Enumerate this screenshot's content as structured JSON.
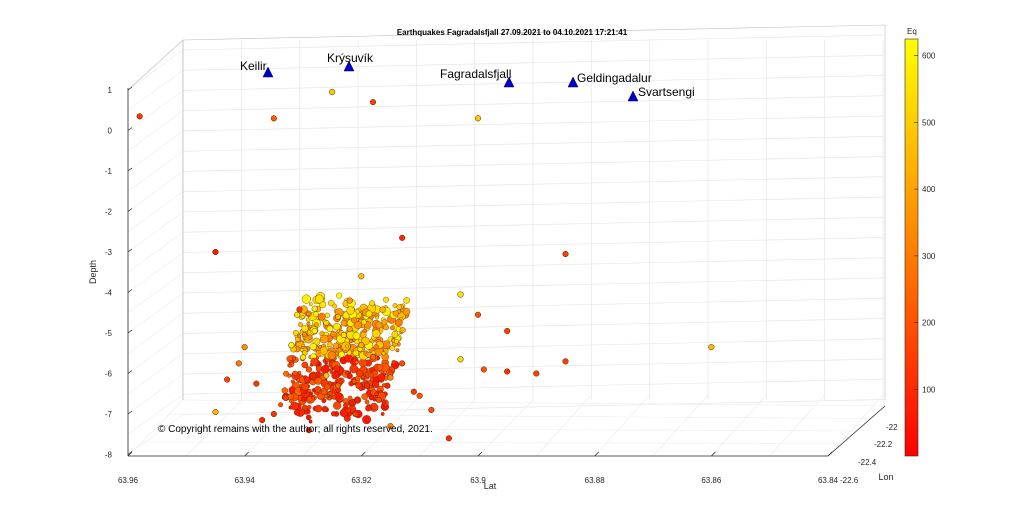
{
  "chart_data": {
    "type": "scatter",
    "title": "Earthquakes Fagradalsfjall 27.09.2021 to 04.10.2021 17:21:41",
    "xlabel": "Lat",
    "ylabel": "Depth",
    "zlabel": "Lon",
    "colorbar_label": "Eq",
    "copyright": "© Copyright remains with the author; all rights reserved, 2021.",
    "lat_ticks": [
      "63.96",
      "63.94",
      "63.92",
      "63.9",
      "63.88",
      "63.86",
      "63.84"
    ],
    "depth_ticks": [
      "1",
      "0",
      "-1",
      "-2",
      "-3",
      "-4",
      "-5",
      "-6",
      "-7",
      "-8"
    ],
    "lon_ticks": [
      "-22",
      "-22.2",
      "-22.4",
      "-22.6"
    ],
    "colorbar_ticks": [
      "100",
      "200",
      "300",
      "400",
      "500",
      "600"
    ],
    "colorbar_range": [
      0,
      625
    ],
    "colormap": [
      "#ff0000",
      "#ff8000",
      "#ffff00"
    ],
    "grid": true,
    "sites": [
      {
        "name": "Keilir"
      },
      {
        "name": "Krýsuvík"
      },
      {
        "name": "Fagradalsfjall"
      },
      {
        "name": "Geldingadalur"
      },
      {
        "name": "Svartsengi"
      }
    ],
    "marker_color": "#0000cc",
    "points": [
      {
        "lat": 63.9306,
        "depth": -4.42,
        "eq": 120
      },
      {
        "lat": 63.925,
        "depth": 0.95,
        "eq": 500
      },
      {
        "lat": 63.918,
        "depth": 0.7,
        "eq": 150
      },
      {
        "lat": 63.958,
        "depth": 0.35,
        "eq": 120
      },
      {
        "lat": 63.935,
        "depth": 0.3,
        "eq": 220
      },
      {
        "lat": 63.9,
        "depth": 0.3,
        "eq": 500
      },
      {
        "lat": 63.913,
        "depth": -2.65,
        "eq": 90
      },
      {
        "lat": 63.885,
        "depth": -3.05,
        "eq": 150
      },
      {
        "lat": 63.92,
        "depth": -3.6,
        "eq": 470
      },
      {
        "lat": 63.945,
        "depth": -3.0,
        "eq": 60
      },
      {
        "lat": 63.922,
        "depth": -4.2,
        "eq": 380
      },
      {
        "lat": 63.903,
        "depth": -4.05,
        "eq": 560
      },
      {
        "lat": 63.9,
        "depth": -4.55,
        "eq": 200
      },
      {
        "lat": 63.895,
        "depth": -4.95,
        "eq": 150
      },
      {
        "lat": 63.885,
        "depth": -5.7,
        "eq": 150
      },
      {
        "lat": 63.903,
        "depth": -5.65,
        "eq": 530
      },
      {
        "lat": 63.899,
        "depth": -5.9,
        "eq": 200
      },
      {
        "lat": 63.895,
        "depth": -5.95,
        "eq": 110
      },
      {
        "lat": 63.89,
        "depth": -6.0,
        "eq": 150
      },
      {
        "lat": 63.91,
        "depth": -6.55,
        "eq": 200
      },
      {
        "lat": 63.905,
        "depth": -7.6,
        "eq": 100
      },
      {
        "lat": 63.915,
        "depth": -7.3,
        "eq": 320
      },
      {
        "lat": 63.86,
        "depth": -5.35,
        "eq": 450
      },
      {
        "lat": 63.932,
        "depth": -5.3,
        "eq": 600
      },
      {
        "lat": 63.93,
        "depth": -5.6,
        "eq": 580
      },
      {
        "lat": 63.929,
        "depth": -5.9,
        "eq": 200
      },
      {
        "lat": 63.926,
        "depth": -6.05,
        "eq": 480
      },
      {
        "lat": 63.924,
        "depth": -6.3,
        "eq": 250
      },
      {
        "lat": 63.933,
        "depth": -6.6,
        "eq": 150
      },
      {
        "lat": 63.935,
        "depth": -7.0,
        "eq": 120
      },
      {
        "lat": 63.929,
        "depth": -7.4,
        "eq": 90
      },
      {
        "lat": 63.921,
        "depth": -7.0,
        "eq": 140
      },
      {
        "lat": 63.917,
        "depth": -6.65,
        "eq": 180
      },
      {
        "lat": 63.919,
        "depth": -6.3,
        "eq": 100
      },
      {
        "lat": 63.923,
        "depth": -5.05,
        "eq": 550
      },
      {
        "lat": 63.926,
        "depth": -4.75,
        "eq": 520
      },
      {
        "lat": 63.928,
        "depth": -4.95,
        "eq": 600
      },
      {
        "lat": 63.94,
        "depth": -5.35,
        "eq": 350
      },
      {
        "lat": 63.943,
        "depth": -6.15,
        "eq": 160
      },
      {
        "lat": 63.938,
        "depth": -6.25,
        "eq": 130
      },
      {
        "lat": 63.941,
        "depth": -5.75,
        "eq": 300
      },
      {
        "lat": 63.945,
        "depth": -6.95,
        "eq": 450
      },
      {
        "lat": 63.937,
        "depth": -7.15,
        "eq": 100
      },
      {
        "lat": 63.92,
        "depth": -5.3,
        "eq": 420
      },
      {
        "lat": 63.918,
        "depth": -5.6,
        "eq": 260
      },
      {
        "lat": 63.915,
        "depth": -6.1,
        "eq": 330
      },
      {
        "lat": 63.913,
        "depth": -5.75,
        "eq": 170
      },
      {
        "lat": 63.911,
        "depth": -6.45,
        "eq": 140
      },
      {
        "lat": 63.908,
        "depth": -6.9,
        "eq": 180
      },
      {
        "lat": 63.931,
        "depth": -4.55,
        "eq": 560
      },
      {
        "lat": 63.928,
        "depth": -4.4,
        "eq": 600
      },
      {
        "lat": 63.924,
        "depth": -4.6,
        "eq": 450
      },
      {
        "lat": 63.922,
        "depth": -4.9,
        "eq": 400
      }
    ]
  }
}
